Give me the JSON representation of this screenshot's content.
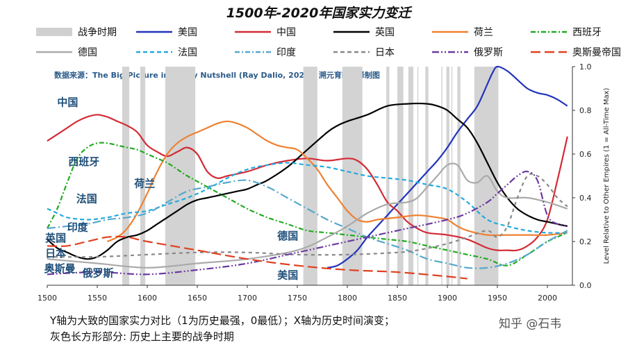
{
  "title": "1500年-2020年国家实力变迁",
  "legend": [
    {
      "label": "战争时期",
      "kind": "band",
      "color": "#d0d0d0"
    },
    {
      "label": "美国",
      "kind": "solid",
      "color": "#2233bb"
    },
    {
      "label": "中国",
      "kind": "solid",
      "color": "#d42a35"
    },
    {
      "label": "英国",
      "kind": "solid",
      "color": "#000000"
    },
    {
      "label": "荷兰",
      "kind": "solid",
      "color": "#f08030"
    },
    {
      "label": "西班牙",
      "kind": "dashdot",
      "color": "#22aa22"
    },
    {
      "label": "德国",
      "kind": "solid",
      "color": "#aaaaaa"
    },
    {
      "label": "法国",
      "kind": "dash",
      "color": "#22aadd"
    },
    {
      "label": "印度",
      "kind": "dashdot",
      "color": "#55a8cc"
    },
    {
      "label": "日本",
      "kind": "dash",
      "color": "#888888"
    },
    {
      "label": "俄罗斯",
      "kind": "dashdotdot",
      "color": "#6a3aa0"
    },
    {
      "label": "奥斯曼帝国",
      "kind": "longdash",
      "color": "#e04020"
    }
  ],
  "source_note": "数据来源：The Big Picture in a Tiny Nutshell (Ray Dalio, 2020), 溯元育新翻译制图",
  "caption_lines": [
    "Y轴为大致的国家实力对比（1为历史最强，0最低）；X轴为历史时间演变；",
    "灰色长方形部分: 历史上主要的战争时期"
  ],
  "watermark": "知乎 @石韦",
  "chart_data": {
    "type": "line",
    "title": "1500年-2020年国家实力变迁",
    "xlabel": "",
    "ylabel": "Level Relative to Other Empires (1 = All-Time Max)",
    "xlim": [
      1500,
      2025
    ],
    "ylim": [
      0,
      1.0
    ],
    "xticks": [
      1500,
      1550,
      1600,
      1650,
      1700,
      1750,
      1800,
      1850,
      1900,
      1950,
      2000
    ],
    "yticks": [
      0.0,
      0.2,
      0.4,
      0.6,
      0.8,
      1.0
    ],
    "ytick_labels": [
      "0.0",
      "0.2",
      "0.4",
      "0.6",
      "0.8",
      "1.0"
    ],
    "y_axis_position": "right",
    "grid": false,
    "war_periods": [
      [
        1575,
        1582
      ],
      [
        1593,
        1598
      ],
      [
        1618,
        1648
      ],
      [
        1756,
        1770
      ],
      [
        1795,
        1815
      ],
      [
        1839,
        1842
      ],
      [
        1850,
        1856
      ],
      [
        1861,
        1866
      ],
      [
        1870,
        1871
      ],
      [
        1878,
        1881
      ],
      [
        1894,
        1895
      ],
      [
        1899,
        1902
      ],
      [
        1904,
        1905
      ],
      [
        1910,
        1913
      ],
      [
        1927,
        1951
      ]
    ],
    "series": [
      {
        "name": "美国",
        "color": "#2233bb",
        "dash": "",
        "x": [
          1780,
          1790,
          1800,
          1810,
          1820,
          1830,
          1840,
          1850,
          1860,
          1870,
          1880,
          1890,
          1900,
          1910,
          1920,
          1930,
          1940,
          1945,
          1950,
          1960,
          1970,
          1980,
          1990,
          2000,
          2010,
          2020
        ],
        "y": [
          0.08,
          0.09,
          0.12,
          0.16,
          0.22,
          0.27,
          0.32,
          0.37,
          0.42,
          0.47,
          0.52,
          0.57,
          0.63,
          0.7,
          0.76,
          0.82,
          0.92,
          0.97,
          1.0,
          0.98,
          0.94,
          0.9,
          0.88,
          0.87,
          0.85,
          0.82
        ]
      },
      {
        "name": "中国",
        "color": "#d42a35",
        "dash": "",
        "x": [
          1500,
          1510,
          1520,
          1530,
          1540,
          1550,
          1560,
          1570,
          1580,
          1590,
          1600,
          1610,
          1620,
          1630,
          1640,
          1650,
          1660,
          1670,
          1680,
          1700,
          1720,
          1740,
          1760,
          1780,
          1800,
          1810,
          1820,
          1830,
          1840,
          1850,
          1860,
          1870,
          1880,
          1900,
          1920,
          1940,
          1950,
          1960,
          1970,
          1980,
          1990,
          2000,
          2010,
          2020
        ],
        "y": [
          0.66,
          0.69,
          0.72,
          0.75,
          0.77,
          0.78,
          0.77,
          0.75,
          0.73,
          0.7,
          0.64,
          0.61,
          0.59,
          0.61,
          0.63,
          0.6,
          0.52,
          0.49,
          0.5,
          0.52,
          0.55,
          0.57,
          0.58,
          0.57,
          0.58,
          0.57,
          0.53,
          0.46,
          0.38,
          0.34,
          0.29,
          0.26,
          0.24,
          0.23,
          0.21,
          0.17,
          0.16,
          0.16,
          0.16,
          0.18,
          0.22,
          0.3,
          0.48,
          0.68
        ]
      },
      {
        "name": "英国",
        "color": "#000000",
        "dash": "",
        "x": [
          1500,
          1510,
          1520,
          1530,
          1540,
          1550,
          1560,
          1570,
          1580,
          1590,
          1600,
          1610,
          1620,
          1630,
          1640,
          1650,
          1660,
          1670,
          1680,
          1690,
          1700,
          1710,
          1720,
          1740,
          1760,
          1780,
          1790,
          1800,
          1820,
          1840,
          1860,
          1880,
          1890,
          1900,
          1910,
          1920,
          1930,
          1940,
          1950,
          1960,
          1970,
          1980,
          1990,
          2000,
          2010,
          2020
        ],
        "y": [
          0.21,
          0.17,
          0.15,
          0.13,
          0.12,
          0.13,
          0.16,
          0.2,
          0.22,
          0.23,
          0.25,
          0.28,
          0.31,
          0.34,
          0.37,
          0.39,
          0.4,
          0.41,
          0.42,
          0.43,
          0.44,
          0.46,
          0.48,
          0.54,
          0.62,
          0.7,
          0.73,
          0.75,
          0.78,
          0.82,
          0.83,
          0.83,
          0.82,
          0.8,
          0.76,
          0.72,
          0.65,
          0.56,
          0.47,
          0.4,
          0.35,
          0.32,
          0.3,
          0.29,
          0.28,
          0.27
        ]
      },
      {
        "name": "荷兰",
        "color": "#f08030",
        "dash": "",
        "x": [
          1560,
          1570,
          1580,
          1590,
          1600,
          1610,
          1620,
          1630,
          1640,
          1650,
          1660,
          1670,
          1680,
          1690,
          1700,
          1710,
          1720,
          1730,
          1740,
          1750,
          1760,
          1770,
          1780,
          1790,
          1800,
          1810,
          1820,
          1830,
          1850,
          1870,
          1890,
          1900,
          1910,
          1920,
          1940,
          1960,
          1980,
          2000,
          2020
        ],
        "y": [
          0.2,
          0.22,
          0.26,
          0.33,
          0.42,
          0.52,
          0.6,
          0.65,
          0.68,
          0.7,
          0.72,
          0.74,
          0.75,
          0.74,
          0.72,
          0.69,
          0.66,
          0.64,
          0.63,
          0.62,
          0.58,
          0.53,
          0.46,
          0.4,
          0.34,
          0.3,
          0.29,
          0.3,
          0.31,
          0.32,
          0.31,
          0.3,
          0.27,
          0.25,
          0.23,
          0.23,
          0.23,
          0.23,
          0.24
        ]
      },
      {
        "name": "西班牙",
        "color": "#22aa22",
        "dash": "7,3,2,3",
        "x": [
          1500,
          1510,
          1520,
          1530,
          1540,
          1550,
          1560,
          1570,
          1580,
          1590,
          1600,
          1610,
          1620,
          1630,
          1640,
          1660,
          1680,
          1700,
          1720,
          1740,
          1760,
          1780,
          1800,
          1820,
          1840,
          1860,
          1880,
          1900,
          1920,
          1940,
          1960,
          1980,
          2000,
          2020
        ],
        "y": [
          0.26,
          0.35,
          0.47,
          0.58,
          0.63,
          0.65,
          0.65,
          0.64,
          0.63,
          0.62,
          0.6,
          0.58,
          0.56,
          0.53,
          0.5,
          0.45,
          0.4,
          0.35,
          0.31,
          0.28,
          0.25,
          0.24,
          0.23,
          0.22,
          0.21,
          0.2,
          0.18,
          0.16,
          0.14,
          0.12,
          0.09,
          0.14,
          0.2,
          0.24
        ]
      },
      {
        "name": "德国",
        "color": "#aaaaaa",
        "dash": "",
        "x": [
          1500,
          1550,
          1600,
          1650,
          1700,
          1750,
          1780,
          1800,
          1820,
          1840,
          1860,
          1870,
          1880,
          1890,
          1900,
          1910,
          1920,
          1930,
          1940,
          1950,
          1960,
          1980,
          2000,
          2020
        ],
        "y": [
          0.12,
          0.1,
          0.08,
          0.1,
          0.12,
          0.16,
          0.22,
          0.27,
          0.33,
          0.37,
          0.38,
          0.4,
          0.45,
          0.5,
          0.55,
          0.55,
          0.48,
          0.47,
          0.5,
          0.43,
          0.4,
          0.4,
          0.38,
          0.35
        ]
      },
      {
        "name": "法国",
        "color": "#22aadd",
        "dash": "6,4",
        "x": [
          1500,
          1510,
          1520,
          1540,
          1560,
          1580,
          1600,
          1620,
          1640,
          1660,
          1680,
          1700,
          1720,
          1740,
          1760,
          1780,
          1800,
          1820,
          1840,
          1860,
          1880,
          1900,
          1920,
          1940,
          1960,
          1980,
          2000,
          2020
        ],
        "y": [
          0.35,
          0.33,
          0.31,
          0.3,
          0.31,
          0.33,
          0.34,
          0.37,
          0.4,
          0.44,
          0.49,
          0.53,
          0.55,
          0.56,
          0.55,
          0.54,
          0.52,
          0.5,
          0.49,
          0.48,
          0.46,
          0.44,
          0.38,
          0.3,
          0.27,
          0.25,
          0.24,
          0.24
        ]
      },
      {
        "name": "印度",
        "color": "#55a8cc",
        "dash": "12,4,2,4",
        "x": [
          1500,
          1520,
          1540,
          1560,
          1580,
          1600,
          1620,
          1640,
          1660,
          1680,
          1700,
          1720,
          1740,
          1760,
          1780,
          1800,
          1820,
          1840,
          1860,
          1880,
          1900,
          1920,
          1940,
          1960,
          1980,
          2000,
          2020
        ],
        "y": [
          0.26,
          0.27,
          0.28,
          0.3,
          0.31,
          0.33,
          0.38,
          0.43,
          0.45,
          0.47,
          0.48,
          0.45,
          0.4,
          0.35,
          0.3,
          0.26,
          0.22,
          0.19,
          0.16,
          0.12,
          0.1,
          0.08,
          0.08,
          0.1,
          0.14,
          0.2,
          0.25
        ]
      },
      {
        "name": "日本",
        "color": "#888888",
        "dash": "5,5",
        "x": [
          1500,
          1550,
          1600,
          1650,
          1700,
          1750,
          1800,
          1850,
          1870,
          1900,
          1920,
          1940,
          1950,
          1960,
          1970,
          1980,
          1990,
          2000,
          2010,
          2020
        ],
        "y": [
          0.13,
          0.13,
          0.14,
          0.15,
          0.15,
          0.14,
          0.14,
          0.15,
          0.16,
          0.19,
          0.22,
          0.25,
          0.22,
          0.27,
          0.4,
          0.5,
          0.5,
          0.46,
          0.4,
          0.36
        ]
      },
      {
        "name": "俄罗斯",
        "color": "#6a3aa0",
        "dash": "10,3,2,3,2,3",
        "x": [
          1500,
          1550,
          1600,
          1650,
          1700,
          1750,
          1800,
          1850,
          1900,
          1920,
          1940,
          1950,
          1960,
          1970,
          1980,
          1990,
          2000,
          2010,
          2020
        ],
        "y": [
          0.05,
          0.06,
          0.05,
          0.07,
          0.1,
          0.15,
          0.2,
          0.25,
          0.3,
          0.33,
          0.38,
          0.42,
          0.46,
          0.5,
          0.52,
          0.48,
          0.32,
          0.28,
          0.27
        ]
      },
      {
        "name": "奥斯曼帝国",
        "color": "#e04020",
        "dash": "14,6",
        "x": [
          1500,
          1520,
          1540,
          1560,
          1580,
          1600,
          1650,
          1700,
          1750,
          1800,
          1850,
          1900,
          1920
        ],
        "y": [
          0.18,
          0.18,
          0.2,
          0.22,
          0.22,
          0.2,
          0.16,
          0.12,
          0.09,
          0.07,
          0.06,
          0.04,
          0.03
        ]
      }
    ],
    "annotations": [
      {
        "text": "中国",
        "x": 1510,
        "y": 0.82
      },
      {
        "text": "西班牙",
        "x": 1521,
        "y": 0.55
      },
      {
        "text": "荷兰",
        "x": 1587,
        "y": 0.45
      },
      {
        "text": "法国",
        "x": 1529,
        "y": 0.38
      },
      {
        "text": "印度",
        "x": 1520,
        "y": 0.25
      },
      {
        "text": "英国",
        "x": 1498,
        "y": 0.2
      },
      {
        "text": "日本",
        "x": 1498,
        "y": 0.13
      },
      {
        "text": "奥斯曼",
        "x": 1497,
        "y": 0.06
      },
      {
        "text": "俄罗斯",
        "x": 1535,
        "y": 0.04
      },
      {
        "text": "德国",
        "x": 1730,
        "y": 0.21
      },
      {
        "text": "美国",
        "x": 1730,
        "y": 0.03
      }
    ]
  }
}
